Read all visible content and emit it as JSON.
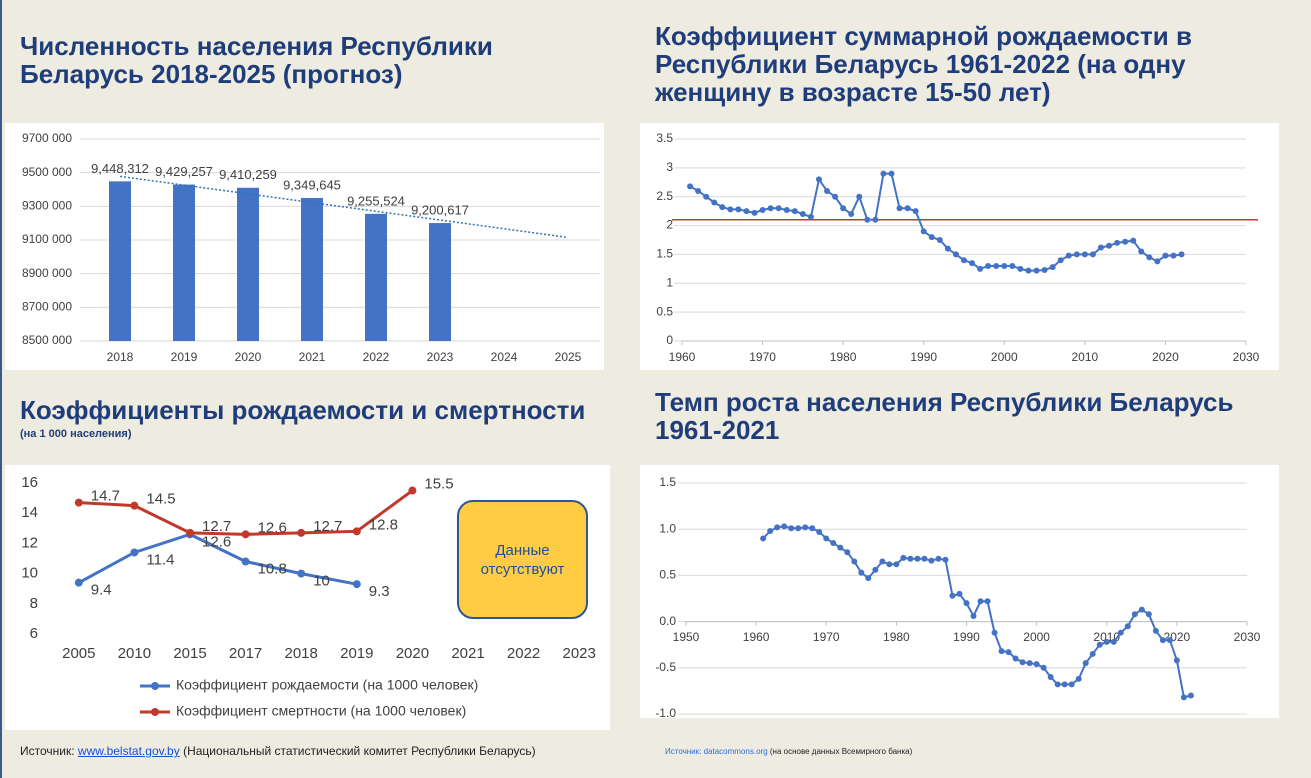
{
  "chart_data": [
    {
      "type": "bar",
      "title": "Численность населения Республики Беларусь 2018-2025 (прогноз)",
      "categories": [
        "2018",
        "2019",
        "2020",
        "2021",
        "2022",
        "2023",
        "2024",
        "2025"
      ],
      "values": [
        9448312,
        9429257,
        9410259,
        9349645,
        9255524,
        9200617,
        null,
        null
      ],
      "value_labels": [
        "9,448,312",
        "9,429,257",
        "9,410,259",
        "9,349,645",
        "9,255,524",
        "9,200,617",
        null,
        null
      ],
      "color": "#4472c4",
      "trendline": {
        "values": [
          9478000,
          9115000
        ],
        "color": "#2e75b6"
      },
      "ylim": [
        8500000,
        9700000
      ],
      "yticks": [
        {
          "value": 8500000,
          "label": "8500 000"
        },
        {
          "value": 8700000,
          "label": "8700 000"
        },
        {
          "value": 8900000,
          "label": "8900 000"
        },
        {
          "value": 9100000,
          "label": "9100 000"
        },
        {
          "value": 9300000,
          "label": "9300 000"
        },
        {
          "value": 9500000,
          "label": "9500 000"
        },
        {
          "value": 9700000,
          "label": "9700 000"
        }
      ],
      "grid": true
    },
    {
      "type": "line",
      "title": "Коэффициент суммарной рождаемости в Республики Беларусь 1961-2022 (на одну женщину в возрасте 15-50 лет)",
      "x": [
        1961,
        1962,
        1963,
        1964,
        1965,
        1966,
        1967,
        1968,
        1969,
        1970,
        1971,
        1972,
        1973,
        1974,
        1975,
        1976,
        1977,
        1978,
        1979,
        1980,
        1981,
        1982,
        1983,
        1984,
        1985,
        1986,
        1987,
        1988,
        1989,
        1990,
        1991,
        1992,
        1993,
        1994,
        1995,
        1996,
        1997,
        1998,
        1999,
        2000,
        2001,
        2002,
        2003,
        2004,
        2005,
        2006,
        2007,
        2008,
        2009,
        2010,
        2011,
        2012,
        2013,
        2014,
        2015,
        2016,
        2017,
        2018,
        2019,
        2020,
        2021,
        2022
      ],
      "values": [
        2.68,
        2.6,
        2.5,
        2.4,
        2.32,
        2.28,
        2.28,
        2.25,
        2.22,
        2.27,
        2.3,
        2.3,
        2.27,
        2.25,
        2.2,
        2.15,
        2.8,
        2.6,
        2.5,
        2.3,
        2.2,
        2.5,
        2.1,
        2.1,
        2.9,
        2.9,
        2.3,
        2.3,
        2.25,
        1.9,
        1.8,
        1.75,
        1.6,
        1.5,
        1.4,
        1.35,
        1.25,
        1.3,
        1.3,
        1.3,
        1.3,
        1.25,
        1.22,
        1.22,
        1.23,
        1.28,
        1.4,
        1.48,
        1.5,
        1.5,
        1.5,
        1.62,
        1.65,
        1.7,
        1.72,
        1.74,
        1.55,
        1.45,
        1.38,
        1.48,
        1.48,
        1.5
      ],
      "color": "#4472c4",
      "reference_line": {
        "value": 2.1,
        "color": "#c0392b"
      },
      "xlim": [
        1960,
        2030
      ],
      "xticks": [
        1960,
        1970,
        1980,
        1990,
        2000,
        2010,
        2020,
        2030
      ],
      "ylim": [
        0,
        3.5
      ],
      "yticks": [
        0,
        0.5,
        1,
        1.5,
        2,
        2.5,
        3,
        3.5
      ],
      "grid": true
    },
    {
      "type": "line",
      "title": "Коэффициенты рождаемости и смертности",
      "subtitle": "(на 1 000 населения)",
      "categories": [
        "2005",
        "2010",
        "2015",
        "2017",
        "2018",
        "2019",
        "2020",
        "2021",
        "2022",
        "2023"
      ],
      "series": [
        {
          "name": "Коэффициент рождаемости (на 1000 человек)",
          "color": "#4472c4",
          "values": [
            9.4,
            11.4,
            12.6,
            10.8,
            10,
            9.3,
            null,
            null,
            null,
            null
          ]
        },
        {
          "name": "Коэффициент смертности (на 1000 человек)",
          "color": "#c0392b",
          "values": [
            14.7,
            14.5,
            12.7,
            12.6,
            12.7,
            12.8,
            15.5,
            null,
            null,
            null
          ]
        }
      ],
      "ylim": [
        6,
        16
      ],
      "yticks": [
        6,
        8,
        10,
        12,
        14,
        16
      ],
      "grid": false,
      "annotation": "Данные отсутствуют",
      "source": {
        "prefix": "Источник:",
        "link": "www.belstat.gov.by",
        "text": "(Национальный статистический комитет Республики Беларусь)"
      }
    },
    {
      "type": "line",
      "title": "Темп роста населения Республики Беларусь 1961-2021",
      "x": [
        1961,
        1962,
        1963,
        1964,
        1965,
        1966,
        1967,
        1968,
        1969,
        1970,
        1971,
        1972,
        1973,
        1974,
        1975,
        1976,
        1977,
        1978,
        1979,
        1980,
        1981,
        1982,
        1983,
        1984,
        1985,
        1986,
        1987,
        1988,
        1989,
        1990,
        1991,
        1992,
        1993,
        1994,
        1995,
        1996,
        1997,
        1998,
        1999,
        2000,
        2001,
        2002,
        2003,
        2004,
        2005,
        2006,
        2007,
        2008,
        2009,
        2010,
        2011,
        2012,
        2013,
        2014,
        2015,
        2016,
        2017,
        2018,
        2019,
        2020,
        2021,
        2022
      ],
      "values": [
        0.9,
        0.98,
        1.02,
        1.03,
        1.01,
        1.01,
        1.02,
        1.01,
        0.97,
        0.9,
        0.85,
        0.8,
        0.75,
        0.65,
        0.53,
        0.47,
        0.56,
        0.65,
        0.62,
        0.62,
        0.69,
        0.68,
        0.68,
        0.68,
        0.66,
        0.68,
        0.67,
        0.28,
        0.3,
        0.2,
        0.06,
        0.22,
        0.22,
        -0.12,
        -0.32,
        -0.33,
        -0.4,
        -0.44,
        -0.45,
        -0.46,
        -0.5,
        -0.6,
        -0.68,
        -0.68,
        -0.68,
        -0.62,
        -0.45,
        -0.35,
        -0.25,
        -0.22,
        -0.22,
        -0.12,
        -0.05,
        0.08,
        0.13,
        0.08,
        -0.1,
        -0.2,
        -0.2,
        -0.42,
        -0.82,
        -0.8
      ],
      "color": "#4472c4",
      "xlim": [
        1950,
        2030
      ],
      "xticks": [
        1950,
        1960,
        1970,
        1980,
        1990,
        2000,
        2010,
        2020,
        2030
      ],
      "ylim": [
        -1,
        1.5
      ],
      "yticks": [
        {
          "value": -1,
          "label": "-1.0"
        },
        -0.5,
        {
          "value": 0,
          "label": "0.0"
        },
        0.5,
        {
          "value": 1,
          "label": "1.0"
        },
        1.5
      ],
      "grid": true,
      "source": {
        "prefix": "Источник:",
        "link": "datacommons.org",
        "text": "(на основе данных Всемирного банка)"
      }
    }
  ]
}
